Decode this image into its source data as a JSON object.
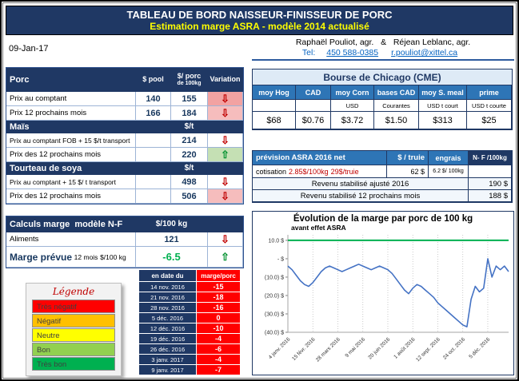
{
  "colors": {
    "navy": "#1F3864",
    "header_blue": "#2E75B6",
    "accent_yellow": "#FFFF00",
    "link_blue": "#0563C1",
    "negative_red": "#C00000",
    "positive_green": "#00B050",
    "series_blue": "#4472C4"
  },
  "icons": {
    "up_arrow": "⇧",
    "down_arrow": "⇩"
  },
  "title": {
    "line1": "TABLEAU DE BORD NAISSEUR-FINISSEUR DE PORC",
    "line2": "Estimation marge ASRA - modèle 2014 actualisé"
  },
  "date": "09-Jan-17",
  "contact": {
    "authors": "Raphaël Pouliot, agr.   &   Réjean Leblanc, agr.",
    "tel_label": "Tel:",
    "phone": "450 588-0385",
    "email": "r.pouliot@xittel.ca"
  },
  "left_table": {
    "header": {
      "title": "Porc",
      "col_pool": "$ pool",
      "col_per": "$/ porc",
      "col_per2": "de 100kg",
      "col_var": "Variation"
    },
    "porc_rows": [
      {
        "label": "Prix au comptant",
        "pool": "140",
        "per": "155",
        "dir": "down",
        "tone": "pink"
      },
      {
        "label": "Prix 12 prochains mois",
        "pool": "166",
        "per": "184",
        "dir": "down",
        "tone": "pink2"
      }
    ],
    "mais": {
      "title": "Maïs",
      "unit": "$/t",
      "rows": [
        {
          "label": "Prix au comptant FOB + 15 $/t transport",
          "value": "214",
          "dir": "down",
          "tone": "none"
        },
        {
          "label": "Prix des 12 prochains mois",
          "value": "220",
          "dir": "up",
          "tone": "green"
        }
      ]
    },
    "soya": {
      "title": "Tourteau de soya",
      "unit": "$/t",
      "rows": [
        {
          "label": "Prix au comptant + 15 $/ t transport",
          "value": "498",
          "dir": "down",
          "tone": "none"
        },
        {
          "label": "Prix des 12 prochains mois",
          "value": "506",
          "dir": "down",
          "tone": "pink2"
        }
      ]
    }
  },
  "calc_table": {
    "title": "Calculs marge  modèle N-F",
    "unit": "$/100 kg",
    "aliments": {
      "label": "Aliments",
      "value": "121",
      "dir": "down"
    },
    "marge": {
      "label1": "Marge prévue",
      "label2": "12 mois",
      "label3": "$/100 kg",
      "value": "-6.5",
      "dir": "up"
    }
  },
  "legend": {
    "title": "Légende",
    "items": [
      {
        "label": "Très négatif",
        "color": "#FF0000"
      },
      {
        "label": "Négatif",
        "color": "#FFC000"
      },
      {
        "label": "Neutre",
        "color": "#FFFF00"
      },
      {
        "label": "Bon",
        "color": "#92D050"
      },
      {
        "label": "Très bon",
        "color": "#00B050"
      }
    ]
  },
  "marge_table": {
    "col_date": "en date du",
    "col_value": "marge/porc",
    "rows": [
      {
        "date": "14 nov. 2016",
        "value": "-15"
      },
      {
        "date": "21 nov. 2016",
        "value": "-18"
      },
      {
        "date": "28 nov. 2016",
        "value": "-16"
      },
      {
        "date": "5 déc. 2016",
        "value": "0"
      },
      {
        "date": "12 déc. 2016",
        "value": "-10"
      },
      {
        "date": "19 déc. 2016",
        "value": "-4"
      },
      {
        "date": "26 déc. 2016",
        "value": "-6"
      },
      {
        "date": "3 janv. 2017",
        "value": "-4"
      },
      {
        "date": "9 janv. 2017",
        "value": "-7"
      }
    ]
  },
  "cme": {
    "title": "Bourse de Chicago (CME)",
    "columns": [
      "moy Hog",
      "CAD",
      "moy Corn",
      "bases CAD",
      "moy S. meal",
      "prime"
    ],
    "subcolumns": [
      "",
      "",
      "USD",
      "Courantes",
      "USD t court",
      "USD t courte"
    ],
    "values": [
      "$68",
      "$0.76",
      "$3.72",
      "$1.50",
      "$313",
      "$25"
    ]
  },
  "asra": {
    "title": "prévision ASRA 2016 net",
    "col_truie": "$ / truie",
    "col_engrais": "engrais",
    "col_nf": "N- F /100kg",
    "cot_label": "cotisation",
    "cot_rate": "2.85$/100kg",
    "cot_truie": "29$/truie",
    "cot_value": "62 $",
    "cot_engrais": "6.2 $/ 100kg",
    "rows": [
      {
        "label": "Revenu stabilisé ajusté 2016",
        "value": "190 $"
      },
      {
        "label": "Revenu stabilisé 12 prochains mois",
        "value": "188 $"
      }
    ]
  },
  "chart_data": {
    "type": "line",
    "title": "Évolution de la marge par porc de 100 kg",
    "subtitle": "avant effet ASRA",
    "xlabel": "",
    "ylabel": "",
    "ylim": [
      -40,
      10
    ],
    "grid": "vertical-dotted",
    "yticks": [
      {
        "v": 10,
        "label": "10.0 $"
      },
      {
        "v": 0,
        "label": "-  $"
      },
      {
        "v": -10,
        "label": "(10.0) $"
      },
      {
        "v": -20,
        "label": "(20.0) $"
      },
      {
        "v": -30,
        "label": "(30.0) $"
      },
      {
        "v": -40,
        "label": "(40.0) $"
      }
    ],
    "x_tick_indices": [
      0,
      6,
      12,
      18,
      24,
      30,
      36,
      42,
      48
    ],
    "x_tick_labels": [
      "4 janv. 2016",
      "15 févr. 2016",
      "28 mars 2016",
      "9 mai 2016",
      "20 juin 2016",
      "1 août 2016",
      "12 sept. 2016",
      "24 oct. 2016",
      "5 déc. 2016"
    ],
    "reference_line": {
      "value": 10,
      "color": "#00B050"
    },
    "series": [
      {
        "name": "marge par porc de 100 kg",
        "color": "#4472C4",
        "values": [
          -4,
          -6,
          -9,
          -12,
          -14,
          -15,
          -13,
          -10,
          -7,
          -5,
          -4,
          -5,
          -6,
          -7,
          -6,
          -5,
          -4,
          -3,
          -4,
          -5,
          -6,
          -5,
          -4,
          -5,
          -6,
          -8,
          -11,
          -14,
          -17,
          -19,
          -16,
          -14,
          -15,
          -17,
          -19,
          -21,
          -24,
          -26,
          -28,
          -30,
          -32,
          -34,
          -36,
          -37,
          -22,
          -15,
          -18,
          -16,
          0,
          -10,
          -4,
          -6,
          -4,
          -7
        ]
      }
    ]
  }
}
